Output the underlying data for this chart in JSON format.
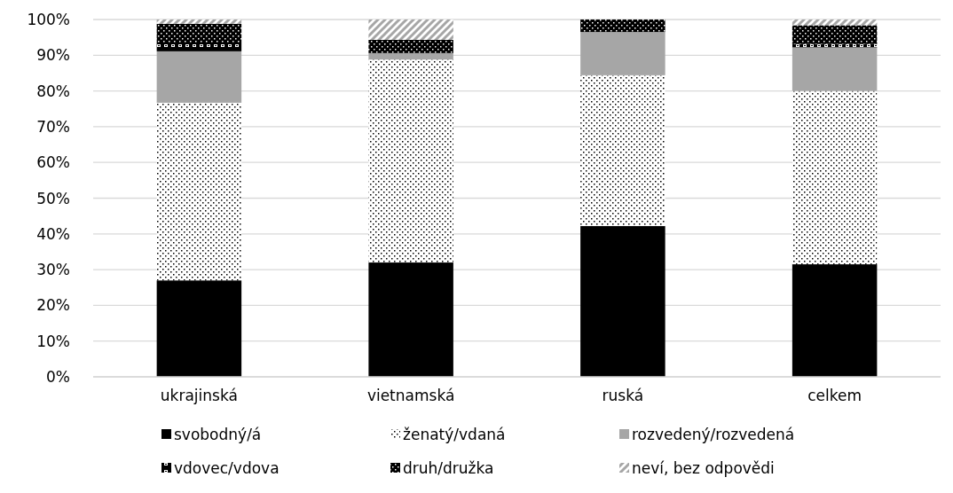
{
  "chart_data": {
    "type": "bar",
    "stacked": true,
    "categories": [
      "ukrajinská",
      "vietnamská",
      "ruská",
      "celkem"
    ],
    "series": [
      {
        "name": "svobodný/á",
        "color": "#000000",
        "values": [
          27.0,
          32.0,
          42.2,
          31.5
        ]
      },
      {
        "name": "ženatý/vdaná",
        "color": "#ffffff",
        "values": [
          49.7,
          56.8,
          42.2,
          48.5
        ]
      },
      {
        "name": "rozvedený/rozvedená",
        "color": "#a6a6a6",
        "values": [
          14.4,
          1.8,
          12.1,
          12.2
        ]
      },
      {
        "name": "vdovec/vdova",
        "color": "#000000",
        "values": [
          2.2,
          0,
          0,
          1.0
        ]
      },
      {
        "name": "druh/družka",
        "color": "#000000",
        "values": [
          5.5,
          3.7,
          3.5,
          5.2
        ]
      },
      {
        "name": "neví, bez odpovědi",
        "color": "#a6a6a6",
        "values": [
          1.2,
          5.7,
          0,
          1.6
        ]
      }
    ],
    "ylim": [
      0,
      100
    ],
    "yticks": [
      {
        "value": 0,
        "label": "0%"
      },
      {
        "value": 10,
        "label": "10%"
      },
      {
        "value": 20,
        "label": "20%"
      },
      {
        "value": 30,
        "label": "30%"
      },
      {
        "value": 40,
        "label": "40%"
      },
      {
        "value": 50,
        "label": "50%"
      },
      {
        "value": 60,
        "label": "60%"
      },
      {
        "value": 70,
        "label": "70%"
      },
      {
        "value": 80,
        "label": "80%"
      },
      {
        "value": 90,
        "label": "90%"
      },
      {
        "value": 100,
        "label": "100%"
      }
    ],
    "grid": "y",
    "legend": "bottom"
  }
}
